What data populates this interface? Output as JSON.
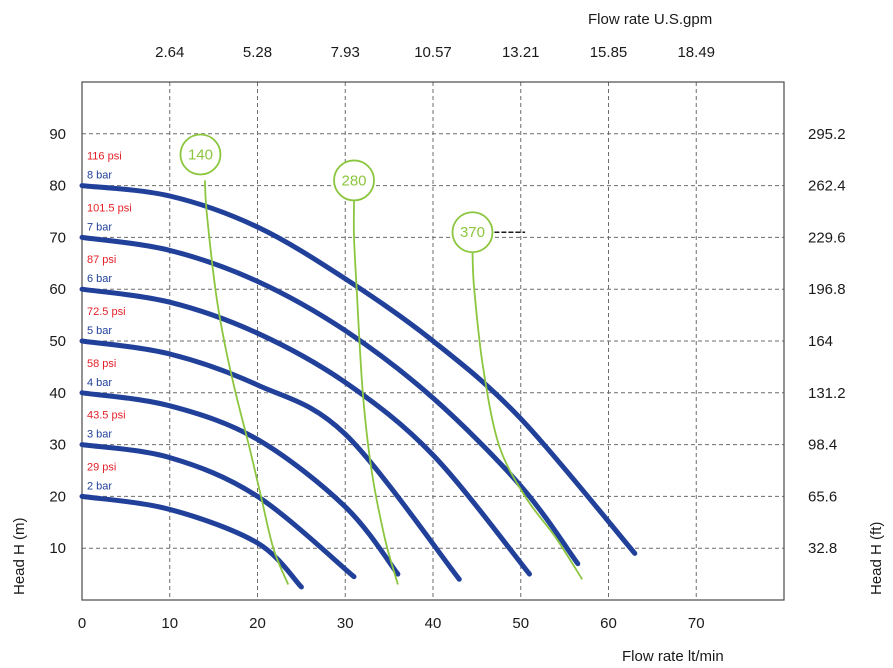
{
  "chart_data": {
    "type": "line",
    "title": "",
    "xlabel": "Flow rate  lt/min",
    "ylabel": "Head H (m)",
    "top_axis_label": "Flow rate U.S.gpm",
    "right_axis_label": "Head H (ft)",
    "xlim": [
      0,
      80
    ],
    "ylim": [
      0,
      100
    ],
    "grid": true,
    "x_ticks": [
      "0",
      "10",
      "20",
      "30",
      "40",
      "50",
      "60",
      "70"
    ],
    "y_ticks": [
      "10",
      "20",
      "30",
      "40",
      "50",
      "60",
      "70",
      "80",
      "90"
    ],
    "top_ticks": [
      {
        "x": 10,
        "label": "2.64"
      },
      {
        "x": 20,
        "label": "5.28"
      },
      {
        "x": 30,
        "label": "7.93"
      },
      {
        "x": 40,
        "label": "10.57"
      },
      {
        "x": 50,
        "label": "13.21"
      },
      {
        "x": 60,
        "label": "15.85"
      },
      {
        "x": 70,
        "label": "18.49"
      }
    ],
    "right_ticks": [
      {
        "y": 10,
        "label": "32.8"
      },
      {
        "y": 20,
        "label": "65.6"
      },
      {
        "y": 30,
        "label": "98.4"
      },
      {
        "y": 40,
        "label": "131.2"
      },
      {
        "y": 50,
        "label": "164"
      },
      {
        "y": 60,
        "label": "196.8"
      },
      {
        "y": 70,
        "label": "229.6"
      },
      {
        "y": 80,
        "label": "262.4"
      },
      {
        "y": 90,
        "label": "295.2"
      }
    ],
    "pressure_labels": [
      {
        "psi": "116 psi",
        "bar": "8 bar",
        "y": 80
      },
      {
        "psi": "101.5 psi",
        "bar": "7 bar",
        "y": 70
      },
      {
        "psi": "87 psi",
        "bar": "6 bar",
        "y": 60
      },
      {
        "psi": "72.5 psi",
        "bar": "5 bar",
        "y": 50
      },
      {
        "psi": "58 psi",
        "bar": "4 bar",
        "y": 40
      },
      {
        "psi": "43.5 psi",
        "bar": "3 bar",
        "y": 30
      },
      {
        "psi": "29 psi",
        "bar": "2 bar",
        "y": 20
      }
    ],
    "series": [
      {
        "points": [
          [
            0,
            80
          ],
          [
            10,
            78
          ],
          [
            20,
            72
          ],
          [
            30,
            62
          ],
          [
            40,
            50
          ],
          [
            50,
            35
          ],
          [
            63,
            9
          ]
        ]
      },
      {
        "points": [
          [
            0,
            70
          ],
          [
            10,
            67.5
          ],
          [
            20,
            61.5
          ],
          [
            30,
            52
          ],
          [
            40,
            39
          ],
          [
            50,
            22
          ],
          [
            56.5,
            7
          ]
        ]
      },
      {
        "points": [
          [
            0,
            60
          ],
          [
            10,
            57.5
          ],
          [
            20,
            51.5
          ],
          [
            30,
            42
          ],
          [
            40,
            28
          ],
          [
            51,
            5
          ]
        ]
      },
      {
        "points": [
          [
            0,
            50
          ],
          [
            10,
            47.5
          ],
          [
            20,
            41.5
          ],
          [
            30,
            32
          ],
          [
            43,
            4
          ]
        ]
      },
      {
        "points": [
          [
            0,
            40
          ],
          [
            10,
            37.5
          ],
          [
            20,
            31
          ],
          [
            30,
            18
          ],
          [
            36,
            5
          ]
        ]
      },
      {
        "points": [
          [
            0,
            30
          ],
          [
            10,
            27.5
          ],
          [
            20,
            20
          ],
          [
            31,
            4.5
          ]
        ]
      },
      {
        "points": [
          [
            0,
            20
          ],
          [
            10,
            17.5
          ],
          [
            20,
            11
          ],
          [
            25,
            2.5
          ]
        ]
      }
    ],
    "air_curves": [
      {
        "label": "140",
        "circle": [
          13.5,
          86
        ],
        "points": [
          [
            14,
            81
          ],
          [
            14.2,
            75
          ],
          [
            15.2,
            60
          ],
          [
            16.2,
            50
          ],
          [
            17.5,
            40
          ],
          [
            19,
            30
          ],
          [
            20.4,
            20
          ],
          [
            21.8,
            10
          ],
          [
            23.5,
            3
          ]
        ]
      },
      {
        "label": "280",
        "circle": [
          31,
          81
        ],
        "points": [
          [
            31,
            77
          ],
          [
            31,
            70
          ],
          [
            31.3,
            60
          ],
          [
            32,
            40
          ],
          [
            33,
            25
          ],
          [
            34.5,
            12
          ],
          [
            36,
            3
          ]
        ]
      },
      {
        "label": "370",
        "circle": [
          44.5,
          71
        ],
        "points": [
          [
            44.5,
            67
          ],
          [
            44.7,
            60
          ],
          [
            45.7,
            45
          ],
          [
            47.5,
            30
          ],
          [
            50.5,
            20
          ],
          [
            54,
            12
          ],
          [
            57,
            4
          ]
        ]
      }
    ],
    "annotation_dash": {
      "x_from": 47,
      "x_to": 50.5,
      "y": 71
    }
  }
}
